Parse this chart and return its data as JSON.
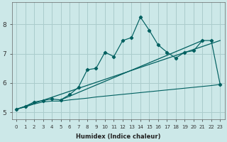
{
  "title": "",
  "xlabel": "Humidex (Indice chaleur)",
  "ylabel": "",
  "bg_color": "#cce8e8",
  "grid_color": "#aacccc",
  "line_color": "#006060",
  "xlim": [
    -0.5,
    23.5
  ],
  "ylim": [
    4.75,
    8.75
  ],
  "xticks": [
    0,
    1,
    2,
    3,
    4,
    5,
    6,
    7,
    8,
    9,
    10,
    11,
    12,
    13,
    14,
    15,
    16,
    17,
    18,
    19,
    20,
    21,
    22,
    23
  ],
  "yticks": [
    5,
    6,
    7,
    8
  ],
  "jagged_x": [
    0,
    1,
    2,
    3,
    4,
    5,
    6,
    7,
    8,
    9,
    10,
    11,
    12,
    13,
    14,
    15,
    16,
    17,
    18,
    19,
    20,
    21,
    22,
    23
  ],
  "jagged_y": [
    5.1,
    5.2,
    5.35,
    5.4,
    5.45,
    5.42,
    5.6,
    5.85,
    6.45,
    6.5,
    7.05,
    6.9,
    7.45,
    7.55,
    8.25,
    7.8,
    7.3,
    7.05,
    6.85,
    7.05,
    7.1,
    7.45,
    7.45,
    5.95
  ],
  "trend1_x": [
    0,
    23
  ],
  "trend1_y": [
    5.1,
    7.45
  ],
  "trend2_x": [
    5,
    21
  ],
  "trend2_y": [
    5.42,
    7.45
  ],
  "flat_x": [
    0,
    1,
    2,
    3,
    4,
    5,
    6,
    7,
    8,
    9,
    10,
    11,
    12,
    13,
    14,
    15,
    16,
    17,
    18,
    19,
    20,
    21,
    22,
    23
  ],
  "flat_y": [
    5.1,
    5.18,
    5.28,
    5.35,
    5.38,
    5.38,
    5.42,
    5.45,
    5.48,
    5.52,
    5.55,
    5.58,
    5.61,
    5.64,
    5.67,
    5.7,
    5.73,
    5.76,
    5.79,
    5.82,
    5.85,
    5.88,
    5.91,
    5.95
  ]
}
